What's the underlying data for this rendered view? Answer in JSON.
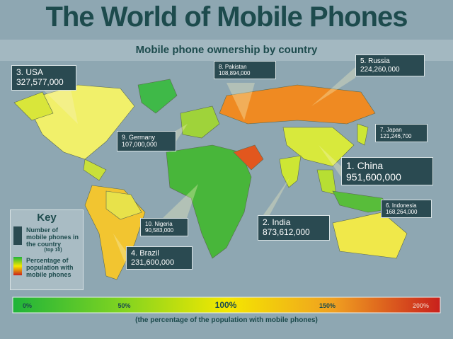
{
  "header": {
    "title": "The World of Mobile Phones",
    "subtitle": "Mobile phone ownership by country"
  },
  "callouts": [
    {
      "label": "3. USA",
      "value": "327,577,000"
    },
    {
      "label": "8. Pakistan",
      "value": "108,894,000"
    },
    {
      "label": "5. Russia",
      "value": "224,260,000"
    },
    {
      "label": "7. Japan",
      "value": "121,246,700"
    },
    {
      "label": "9. Germany",
      "value": "107,000,000"
    },
    {
      "label": "1. China",
      "value": "951,600,000"
    },
    {
      "label": "6. Indonesia",
      "value": "168,264,000"
    },
    {
      "label": "10. Nigeria",
      "value": "90,583,000"
    },
    {
      "label": "2. India",
      "value": "873,612,000"
    },
    {
      "label": "4. Brazil",
      "value": "231,600,000"
    }
  ],
  "key": {
    "title": "Key",
    "phones_label": "Number of mobile phones in the country",
    "phones_note": "(top 10)",
    "percent_label": "Percentage of population with mobile phones"
  },
  "scale": {
    "range": [
      0,
      200
    ],
    "ticks": [
      {
        "value": 0,
        "label": "0%"
      },
      {
        "value": 50,
        "label": "50%"
      },
      {
        "value": 100,
        "label": "100%"
      },
      {
        "value": 150,
        "label": "150%"
      },
      {
        "value": 200,
        "label": "200%"
      }
    ],
    "colors": [
      "#1fb43a",
      "#7ed321",
      "#f4e800",
      "#f0a020",
      "#c9201c"
    ],
    "caption": "(the percentage of the population with mobile phones)"
  }
}
